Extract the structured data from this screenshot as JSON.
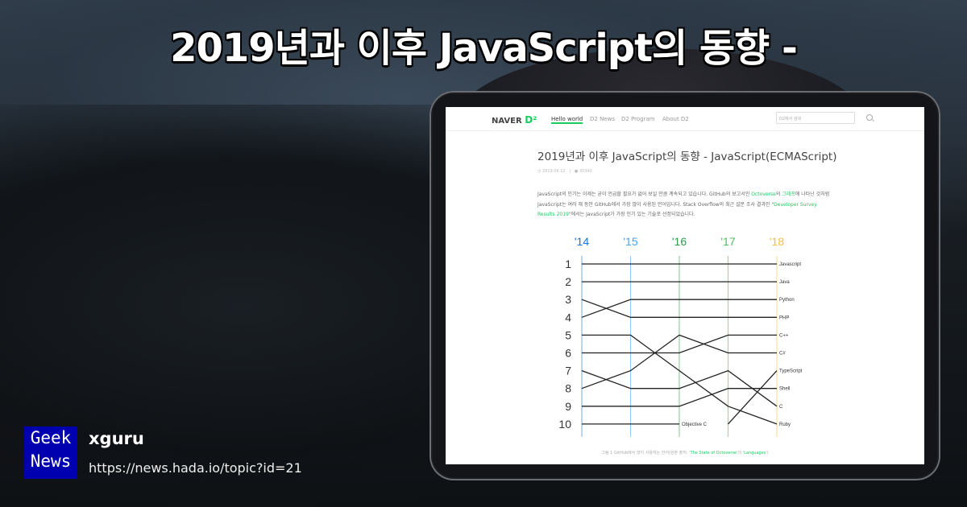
{
  "headline": "2019년과 이후 JavaScript의 동향 -",
  "site": {
    "logo": "NAVER",
    "logo_mark": "D²",
    "nav": [
      "Hello world",
      "D2 News",
      "D2 Program",
      "About D2"
    ],
    "active_nav": "Hello world",
    "search_placeholder": "D2에서 검색",
    "accent": "#19ce60"
  },
  "article": {
    "title": "2019년과 이후 JavaScript의 동향 - JavaScript(ECMAScript)",
    "date": "2019.06.12",
    "views": "30340",
    "para_1": "JavaScript의 인기는 이제는 굳이 언급할 필요가 없어 보일 만큼 계속되고 있습니다. GitHub의 보고서인 ",
    "link_octoverse": "Octoverse",
    "para_2": "의 ",
    "link_graph": "그래프",
    "para_3": "에 나타난 것처럼 JavaScript는 여러 해 동안 GitHub에서 가장 많이 사용된 언어입니다. Stack Overflow의 최근 설문 조사 결과인 \"",
    "link_survey": "Developer Survey Results 2019",
    "para_4": "\"에서는 JavaScript가 가장 인기 있는 기술로 선정되었습니다.",
    "caption_1": "그림 1 GitHub에서 많이 사용하는 언어(원본 출처: '",
    "caption_link_1": "The State of Octoverse",
    "caption_2": "'의 '",
    "caption_link_2": "Languages",
    "caption_3": "')"
  },
  "chart_data": {
    "type": "line",
    "subtype": "bump",
    "categories": [
      "'14",
      "'15",
      "'16",
      "'17",
      "'18"
    ],
    "category_colors": [
      "#1a73d9",
      "#4da3f0",
      "#2e9a4a",
      "#4cc060",
      "#f5c040"
    ],
    "y_ticks": [
      "1",
      "2",
      "3",
      "4",
      "5",
      "6",
      "7",
      "8",
      "9",
      "10"
    ],
    "ylim": [
      1,
      10
    ],
    "y_inverted": true,
    "series": [
      {
        "name": "Javascript",
        "values": [
          1,
          1,
          1,
          1,
          1
        ]
      },
      {
        "name": "Java",
        "values": [
          2,
          2,
          2,
          2,
          2
        ]
      },
      {
        "name": "Python",
        "values": [
          4,
          3,
          3,
          3,
          3
        ]
      },
      {
        "name": "PHP",
        "values": [
          3,
          4,
          4,
          4,
          4
        ]
      },
      {
        "name": "C++",
        "values": [
          6,
          6,
          6,
          5,
          5
        ]
      },
      {
        "name": "C#",
        "values": [
          8,
          7,
          5,
          6,
          6
        ]
      },
      {
        "name": "TypeScript",
        "values": [
          null,
          null,
          null,
          10,
          7
        ]
      },
      {
        "name": "Shell",
        "values": [
          9,
          9,
          9,
          8,
          8
        ]
      },
      {
        "name": "C",
        "values": [
          7,
          8,
          8,
          7,
          9
        ]
      },
      {
        "name": "Ruby",
        "values": [
          5,
          5,
          7,
          9,
          10
        ]
      },
      {
        "name": "Objective C",
        "values": [
          10,
          10,
          10,
          null,
          null
        ]
      }
    ]
  },
  "footer": {
    "badge_line1": "Geek",
    "badge_line2": "News",
    "author": "xguru",
    "url": "https://news.hada.io/topic?id=21"
  }
}
